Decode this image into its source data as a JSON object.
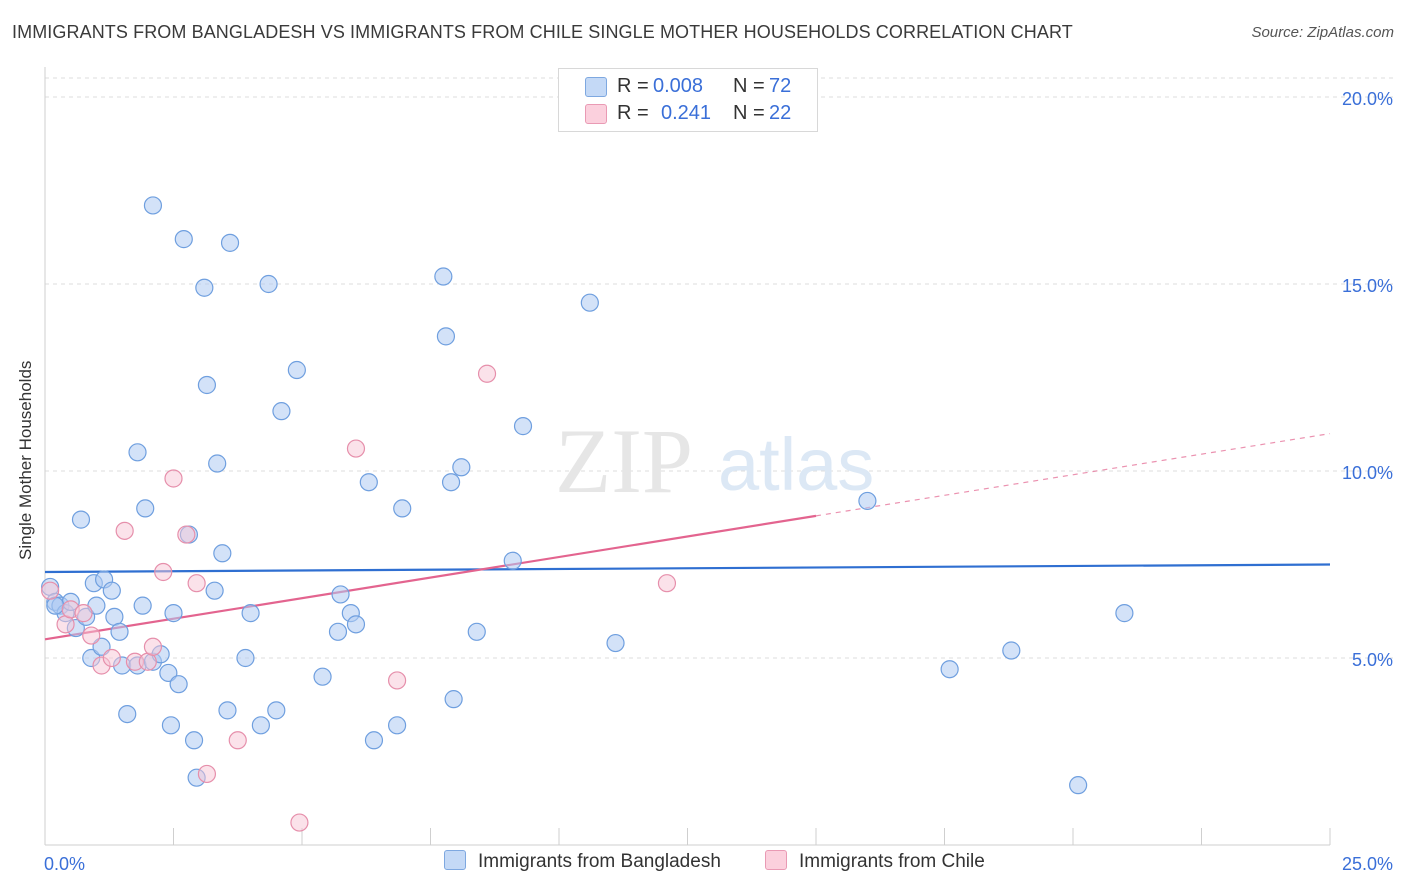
{
  "title": "IMMIGRANTS FROM BANGLADESH VS IMMIGRANTS FROM CHILE SINGLE MOTHER HOUSEHOLDS CORRELATION CHART",
  "source": "Source: ZipAtlas.com",
  "watermark": {
    "zip": "ZIP",
    "atlas": "atlas"
  },
  "legend": {
    "rows": [
      {
        "r_label": "R =",
        "r_value": "0.008",
        "n_label": "N =",
        "n_value": "72"
      },
      {
        "r_label": "R =",
        "r_value": "0.241",
        "n_label": "N =",
        "n_value": "22"
      }
    ]
  },
  "colors": {
    "blue_fill": "#aecbf2",
    "blue_stroke": "#6f9fdf",
    "blue_line": "#2f6fd1",
    "pink_fill": "#f8c5d5",
    "pink_stroke": "#e68fab",
    "pink_line": "#e3648f",
    "axis_text": "#3a6fd8",
    "grid": "#dedede"
  },
  "chart_data": {
    "type": "scatter",
    "title": "IMMIGRANTS FROM BANGLADESH VS IMMIGRANTS FROM CHILE SINGLE MOTHER HOUSEHOLDS CORRELATION CHART",
    "xlabel": "",
    "ylabel": "Single Mother Households",
    "xlim": [
      0,
      25
    ],
    "ylim": [
      0,
      20
    ],
    "x_tick_labels": [
      "0.0%",
      "25.0%"
    ],
    "y_tick_values": [
      5,
      10,
      15,
      20
    ],
    "y_tick_labels": [
      "5.0%",
      "10.0%",
      "15.0%",
      "20.0%"
    ],
    "grid": true,
    "series": [
      {
        "name": "Immigrants from Bangladesh",
        "color": "blue",
        "trend": {
          "x0": 0,
          "y0": 7.3,
          "x1": 25,
          "y1": 7.5,
          "solid_until": 25
        },
        "points": [
          [
            0.1,
            6.9
          ],
          [
            0.2,
            6.5
          ],
          [
            0.3,
            6.4
          ],
          [
            0.4,
            6.2
          ],
          [
            0.5,
            6.5
          ],
          [
            0.6,
            5.8
          ],
          [
            0.7,
            8.7
          ],
          [
            0.8,
            6.1
          ],
          [
            0.9,
            5.0
          ],
          [
            0.95,
            7.0
          ],
          [
            1.0,
            6.4
          ],
          [
            1.1,
            5.3
          ],
          [
            1.15,
            7.1
          ],
          [
            1.3,
            6.8
          ],
          [
            1.35,
            6.1
          ],
          [
            1.45,
            5.7
          ],
          [
            1.5,
            4.8
          ],
          [
            1.6,
            3.5
          ],
          [
            1.8,
            4.8
          ],
          [
            1.8,
            10.5
          ],
          [
            1.9,
            6.4
          ],
          [
            1.95,
            9.0
          ],
          [
            2.1,
            17.1
          ],
          [
            2.1,
            4.9
          ],
          [
            2.25,
            5.1
          ],
          [
            2.4,
            4.6
          ],
          [
            2.45,
            3.2
          ],
          [
            2.5,
            6.2
          ],
          [
            2.6,
            4.3
          ],
          [
            2.7,
            16.2
          ],
          [
            2.8,
            8.3
          ],
          [
            2.9,
            2.8
          ],
          [
            2.95,
            1.8
          ],
          [
            3.1,
            14.9
          ],
          [
            3.15,
            12.3
          ],
          [
            3.3,
            6.8
          ],
          [
            3.35,
            10.2
          ],
          [
            3.45,
            7.8
          ],
          [
            3.55,
            3.6
          ],
          [
            3.6,
            16.1
          ],
          [
            3.9,
            5.0
          ],
          [
            4.0,
            6.2
          ],
          [
            4.2,
            3.2
          ],
          [
            4.35,
            15.0
          ],
          [
            4.5,
            3.6
          ],
          [
            4.6,
            11.6
          ],
          [
            4.9,
            12.7
          ],
          [
            5.4,
            4.5
          ],
          [
            5.7,
            5.7
          ],
          [
            5.75,
            6.7
          ],
          [
            5.95,
            6.2
          ],
          [
            6.05,
            5.9
          ],
          [
            6.3,
            9.7
          ],
          [
            6.4,
            2.8
          ],
          [
            6.85,
            3.2
          ],
          [
            6.95,
            9.0
          ],
          [
            7.75,
            15.2
          ],
          [
            7.8,
            13.6
          ],
          [
            7.9,
            9.7
          ],
          [
            7.95,
            3.9
          ],
          [
            8.1,
            10.1
          ],
          [
            8.4,
            5.7
          ],
          [
            9.1,
            7.6
          ],
          [
            9.3,
            11.2
          ],
          [
            10.6,
            14.5
          ],
          [
            11.1,
            5.4
          ],
          [
            16.0,
            9.2
          ],
          [
            17.6,
            4.7
          ],
          [
            18.8,
            5.2
          ],
          [
            20.1,
            1.6
          ],
          [
            21.0,
            6.2
          ],
          [
            0.2,
            6.4
          ]
        ]
      },
      {
        "name": "Immigrants from Chile",
        "color": "pink",
        "trend": {
          "x0": 0,
          "y0": 5.5,
          "x1": 25,
          "y1": 11.0,
          "solid_until": 15
        },
        "points": [
          [
            0.1,
            6.8
          ],
          [
            0.4,
            5.9
          ],
          [
            0.5,
            6.3
          ],
          [
            0.75,
            6.2
          ],
          [
            0.9,
            5.6
          ],
          [
            1.1,
            4.8
          ],
          [
            1.3,
            5.0
          ],
          [
            1.55,
            8.4
          ],
          [
            1.75,
            4.9
          ],
          [
            2.0,
            4.9
          ],
          [
            2.1,
            5.3
          ],
          [
            2.3,
            7.3
          ],
          [
            2.5,
            9.8
          ],
          [
            2.75,
            8.3
          ],
          [
            2.95,
            7.0
          ],
          [
            3.15,
            1.9
          ],
          [
            3.75,
            2.8
          ],
          [
            4.95,
            0.6
          ],
          [
            6.05,
            10.6
          ],
          [
            6.85,
            4.4
          ],
          [
            8.6,
            12.6
          ],
          [
            12.1,
            7.0
          ]
        ]
      }
    ]
  },
  "bottom_legend": [
    "Immigrants from Bangladesh",
    "Immigrants from Chile"
  ]
}
